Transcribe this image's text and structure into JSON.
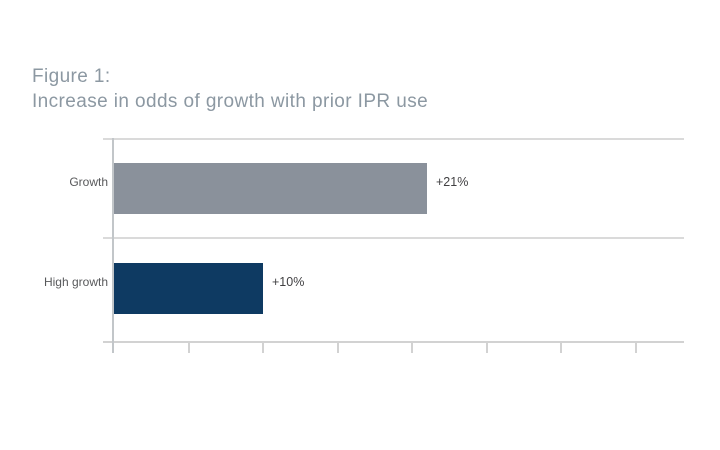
{
  "figure": {
    "label": "Figure 1:",
    "title": "Increase in odds of growth with prior IPR use"
  },
  "chart_data": {
    "type": "bar",
    "orientation": "horizontal",
    "title": "Figure 1: Increase in odds of growth with prior IPR use",
    "categories": [
      "Growth",
      "High growth"
    ],
    "values": [
      21,
      10
    ],
    "value_labels": [
      "+21%",
      "+10%"
    ],
    "bar_colors": [
      "#8A919B",
      "#0E3A62"
    ],
    "unit": "percent",
    "xlabel": "",
    "ylabel": "",
    "xlim": [
      0,
      38.3
    ],
    "xticks": [
      5,
      10,
      15,
      20,
      25,
      30,
      35
    ],
    "tick_labels_shown": false,
    "grid": "row-separator-lines",
    "legend_position": "none"
  },
  "colors": {
    "title_text": "#8C98A2",
    "category_text": "#58595B",
    "value_text": "#414042",
    "grid_line": "#DADADA",
    "axis_line": "#C2C6C9",
    "background": "#FFFFFF"
  }
}
